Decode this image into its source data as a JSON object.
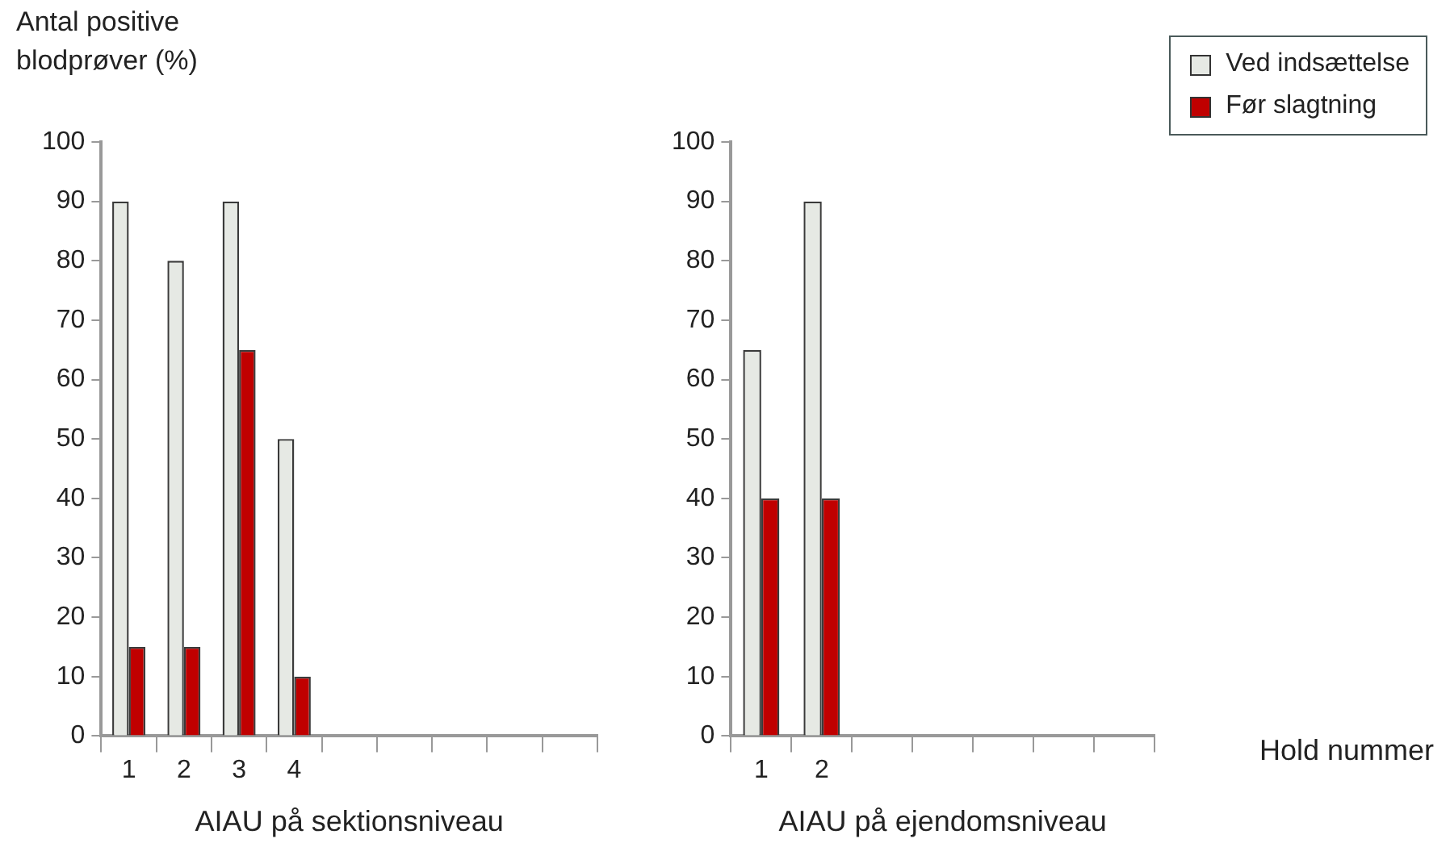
{
  "chart_data": [
    {
      "type": "bar",
      "ylabel": "Antal positive blodprøver (%)",
      "xlabel": "AIAU på sektionsniveau",
      "categories": [
        "1",
        "2",
        "3",
        "4",
        null,
        null,
        null,
        null,
        null
      ],
      "series": [
        {
          "color": "#e6e9e4",
          "values": [
            90,
            80,
            90,
            50,
            null,
            null,
            null,
            null,
            null
          ]
        },
        {
          "color": "#c00000",
          "values": [
            15,
            15,
            65,
            10,
            null,
            null,
            null,
            null,
            null
          ]
        }
      ],
      "ylim": [
        0,
        100
      ],
      "yticks": [
        0,
        10,
        20,
        30,
        40,
        50,
        60,
        70,
        80,
        90,
        100
      ],
      "grid": false,
      "legend": false
    },
    {
      "type": "bar",
      "xlabel": "AIAU på ejendomsniveau",
      "annotations": [
        "Hold nummer"
      ],
      "categories": [
        "1",
        "2",
        null,
        null,
        null,
        null,
        null
      ],
      "series": [
        {
          "name": "Ved indsættelse",
          "color": "#e6e9e4",
          "values": [
            65,
            90,
            null,
            null,
            null,
            null,
            null
          ]
        },
        {
          "name": "Før slagtning",
          "color": "#c00000",
          "values": [
            40,
            40,
            null,
            null,
            null,
            null,
            null
          ]
        }
      ],
      "ylim": [
        0,
        100
      ],
      "yticks": [
        0,
        10,
        20,
        30,
        40,
        50,
        60,
        70,
        80,
        90,
        100
      ],
      "grid": false,
      "legend": "top right"
    }
  ]
}
